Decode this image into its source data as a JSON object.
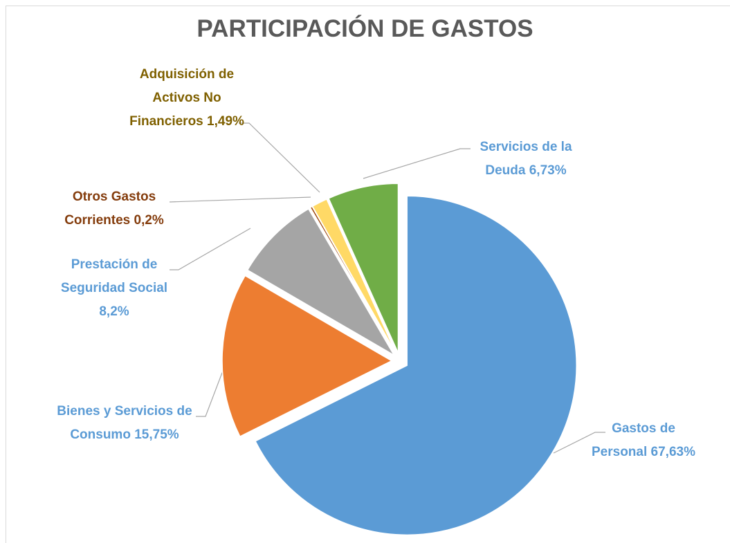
{
  "chart_data": {
    "type": "pie",
    "title": "PARTICIPACIÓN DE GASTOS",
    "categories": [
      "Gastos de Personal",
      "Bienes y Servicios de Consumo",
      "Prestación de Seguridad Social",
      "Otros Gastos Corrientes",
      "Adquisición de Activos No Financieros",
      "Servicios de la Deuda"
    ],
    "values": [
      67.63,
      15.75,
      8.2,
      0.2,
      1.49,
      6.73
    ],
    "value_labels": [
      "67,63%",
      "15,75%",
      "8,2%",
      "0,2%",
      "1,49%",
      "6,73%"
    ],
    "colors": [
      "#5b9bd5",
      "#ed7d31",
      "#a5a5a5",
      "#9e480e",
      "#ffd966",
      "#70ad47"
    ],
    "label_colors": [
      "#5b9bd5",
      "#5b9bd5",
      "#5b9bd5",
      "#843c0c",
      "#7f6000",
      "#5b9bd5"
    ]
  }
}
